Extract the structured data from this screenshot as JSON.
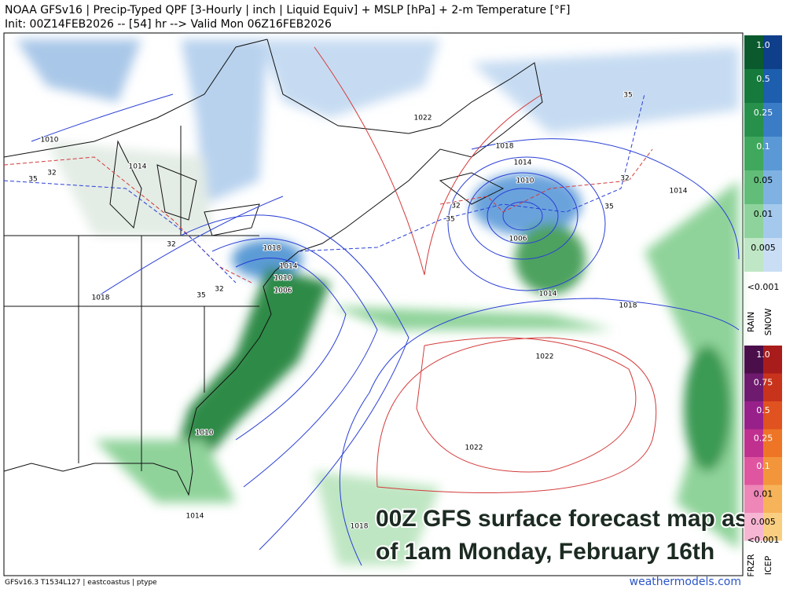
{
  "header": {
    "line1": "NOAA GFSv16 |  Precip-Typed QPF [3-Hourly | inch | Liquid Equiv] + MSLP [hPa] + 2-m Temperature [°F]",
    "line2": "Init: 00Z14FEB2026 -- [54] hr --> Valid Mon 06Z16FEB2026"
  },
  "map": {
    "contour_labels": [
      "1010",
      "1014",
      "1022",
      "1018",
      "1014",
      "1010",
      "1006",
      "1014",
      "1018",
      "1014",
      "35",
      "32",
      "35",
      "32",
      "35",
      "32",
      "35",
      "32",
      "1018",
      "1014",
      "1010",
      "1006",
      "1018",
      "35",
      "32",
      "1022",
      "1022",
      "1010",
      "1014",
      "1018"
    ]
  },
  "legend": {
    "rain_snow": {
      "labels": [
        "1.0",
        "0.5",
        "0.25",
        "0.1",
        "0.05",
        "0.01",
        "0.005",
        "<0.001"
      ],
      "titles": [
        "RAIN",
        "SNOW"
      ]
    },
    "frzr_icep": {
      "labels": [
        "1.0",
        "0.75",
        "0.5",
        "0.25",
        "0.1",
        "0.01",
        "0.005",
        "<0.001"
      ],
      "titles": [
        "FRZR",
        "ICEP"
      ]
    }
  },
  "caption": {
    "lines": [
      "00Z GFS surface forecast map as",
      "of 1am Monday, February 16th"
    ]
  },
  "footer": {
    "left": "GFSv16.3 T1534L127 | eastcoastus | ptype",
    "right": "weathermodels.com"
  }
}
